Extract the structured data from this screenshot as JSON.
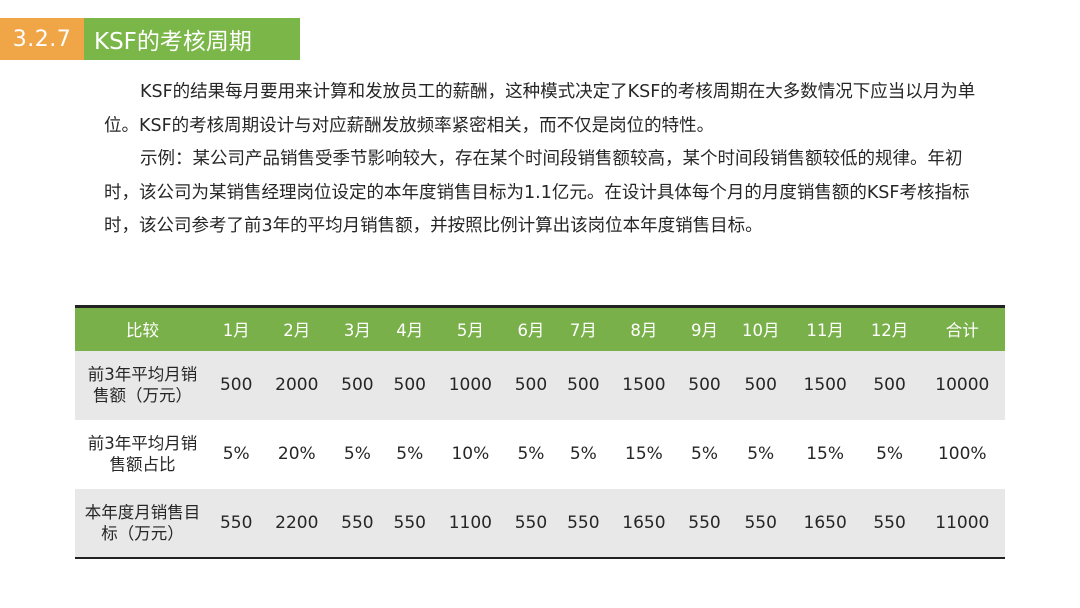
{
  "title": {
    "number": "3.2.7",
    "text": "KSF的考核周期"
  },
  "paragraphs": [
    "KSF的结果每月要用来计算和发放员工的薪酬，这种模式决定了KSF的考核周期在大多数情况下应当以月为单位。KSF的考核周期设计与对应薪酬发放频率紧密相关，而不仅是岗位的特性。",
    "示例：某公司产品销售受季节影响较大，存在某个时间段销售额较高，某个时间段销售额较低的规律。年初时，该公司为某销售经理岗位设定的本年度销售目标为1.1亿元。在设计具体每个月的月度销售额的KSF考核指标时，该公司参考了前3年的平均月销售额，并按照比例计算出该岗位本年度销售目标。"
  ],
  "table": {
    "header": [
      "比较",
      "1月",
      "2月",
      "3月",
      "4月",
      "5月",
      "6月",
      "7月",
      "8月",
      "9月",
      "10月",
      "11月",
      "12月",
      "合计"
    ],
    "rows": [
      {
        "label_line1": "前3年平均月销",
        "label_line2": "售额（万元）",
        "cells": [
          "500",
          "2000",
          "500",
          "500",
          "1000",
          "500",
          "500",
          "1500",
          "500",
          "500",
          "1500",
          "500",
          "10000"
        ]
      },
      {
        "label_line1": "前3年平均月销",
        "label_line2": "售额占比",
        "cells": [
          "5%",
          "20%",
          "5%",
          "5%",
          "10%",
          "5%",
          "5%",
          "15%",
          "5%",
          "5%",
          "15%",
          "5%",
          "100%"
        ]
      },
      {
        "label_line1": "本年度月销售目",
        "label_line2": "标（万元）",
        "cells": [
          "550",
          "2200",
          "550",
          "550",
          "1100",
          "550",
          "550",
          "1650",
          "550",
          "550",
          "1650",
          "550",
          "11000"
        ]
      }
    ]
  },
  "colors": {
    "title_number_bg": "#F0A646",
    "title_text_bg": "#7AB648",
    "table_header_bg": "#79B04A",
    "row_shade": "#E8E8E8"
  }
}
